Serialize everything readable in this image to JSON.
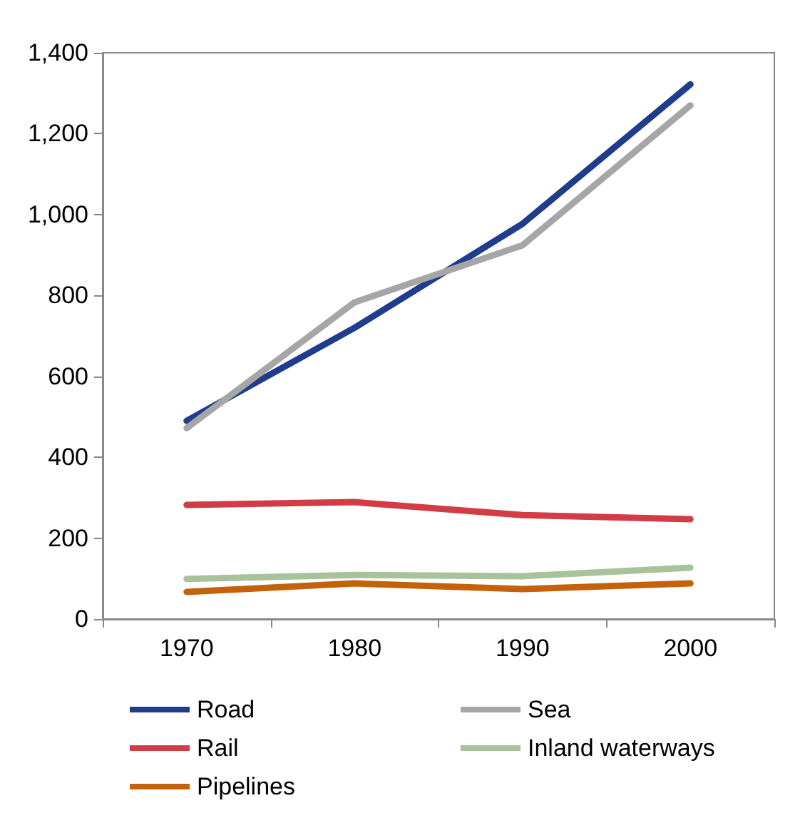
{
  "chart_data": {
    "type": "line",
    "categories": [
      "1970",
      "1980",
      "1990",
      "2000"
    ],
    "series": [
      {
        "name": "Road",
        "color": "#1f3d8c",
        "values": [
          490,
          720,
          977,
          1322
        ]
      },
      {
        "name": "Sea",
        "color": "#a6a6a6",
        "values": [
          472,
          783,
          924,
          1270
        ]
      },
      {
        "name": "Rail",
        "color": "#d23c44",
        "values": [
          282,
          289,
          257,
          247
        ]
      },
      {
        "name": "Inland waterways",
        "color": "#a8c39a",
        "values": [
          99,
          109,
          106,
          127
        ]
      },
      {
        "name": "Pipelines",
        "color": "#c4620c",
        "values": [
          67,
          88,
          74,
          88
        ]
      }
    ],
    "ylim": [
      0,
      1400
    ],
    "yticks": [
      0,
      200,
      400,
      600,
      800,
      {
        "value": 1000,
        "label": "1,000"
      },
      {
        "value": 1200,
        "label": "1,200"
      },
      {
        "value": 1400,
        "label": "1,400"
      }
    ],
    "grid": false,
    "legend": "bottom",
    "marker": "none",
    "line_style": "solid"
  }
}
